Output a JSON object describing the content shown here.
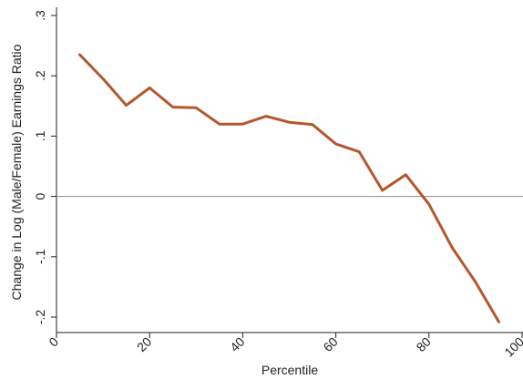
{
  "chart_data": {
    "type": "line",
    "title": "",
    "xlabel": "Percentile",
    "ylabel": "Change in Log (Male/Female) Earnings Ratio",
    "xlim": [
      0,
      100
    ],
    "ylim": [
      -0.2,
      0.3
    ],
    "x_ticks": [
      0,
      20,
      40,
      60,
      80,
      100
    ],
    "x_tick_labels": [
      "0",
      "20",
      "40",
      "60",
      "80",
      "100"
    ],
    "y_ticks": [
      -0.2,
      -0.1,
      0,
      0.1,
      0.2,
      0.3
    ],
    "y_tick_labels": [
      "-.2",
      "-.1",
      "0",
      ".1",
      ".2",
      ".3"
    ],
    "reference_line_y": 0,
    "grid": false,
    "colors": {
      "series": "#b5562a",
      "reference_line": "#8c8c8c",
      "axis": "#222222"
    },
    "series": [
      {
        "x": [
          5,
          10,
          15,
          20,
          25,
          30,
          35,
          40,
          45,
          50,
          55,
          60,
          65,
          70,
          75,
          80,
          85,
          90,
          95
        ],
        "y": [
          0.235,
          0.195,
          0.151,
          0.18,
          0.148,
          0.147,
          0.12,
          0.12,
          0.133,
          0.123,
          0.119,
          0.087,
          0.074,
          0.01,
          0.036,
          -0.013,
          -0.085,
          -0.142,
          -0.208
        ]
      }
    ]
  }
}
